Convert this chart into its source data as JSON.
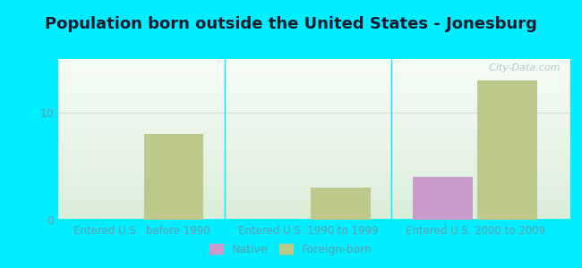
{
  "title": "Population born outside the United States - Jonesburg",
  "title_fontsize": 13,
  "title_color": "#1a1a2e",
  "background_color": "#00eeff",
  "plot_bg_color": "#e8f5e3",
  "categories": [
    "Entered U.S.  before 1990",
    "Entered U.S. 1990 to 1999",
    "Entered U.S. 2000 to 2009"
  ],
  "native_values": [
    0,
    0,
    4
  ],
  "foreign_values": [
    8,
    3,
    13
  ],
  "native_color": "#cc99cc",
  "foreign_color": "#bdc98a",
  "ylim": [
    0,
    15
  ],
  "yticks": [
    0,
    10
  ],
  "xlabel_fontsize": 8.5,
  "tick_color": "#6699aa",
  "watermark": "  City-Data.com",
  "legend_labels": [
    "Native",
    "Foreign-born"
  ],
  "bar_width": 0.25,
  "positions": [
    0.3,
    1.0,
    1.7
  ],
  "xlim": [
    -0.05,
    2.1
  ]
}
